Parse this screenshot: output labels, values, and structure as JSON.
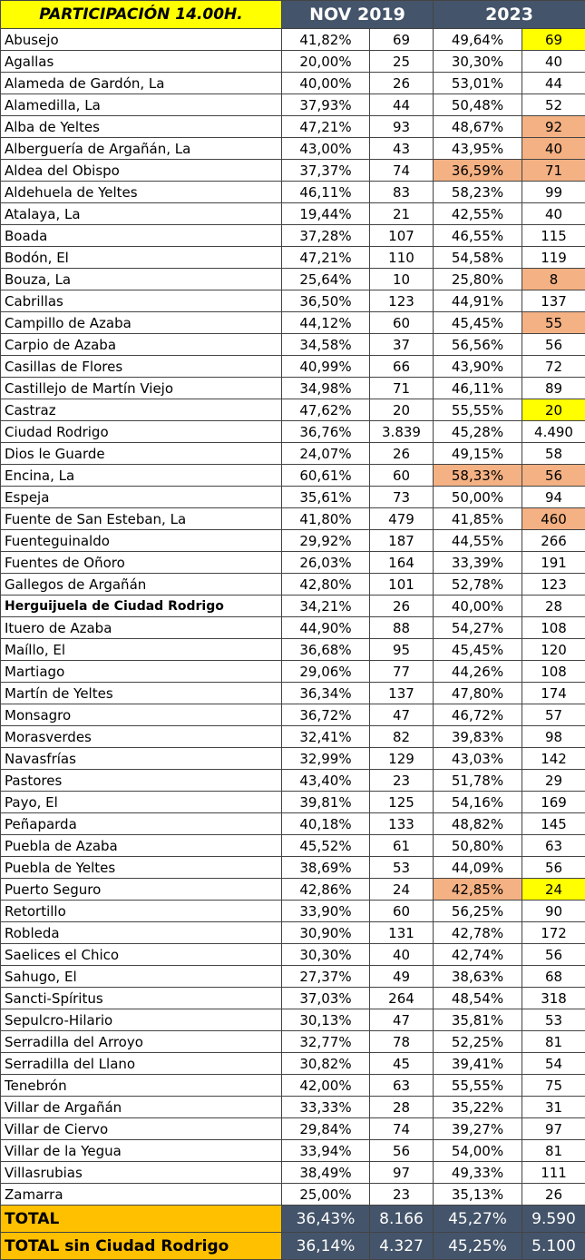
{
  "header": {
    "title": "PARTICIPACIÓN 14.00H.",
    "period1": "NOV 2019",
    "period2": "2023"
  },
  "colors": {
    "title_bg": "#ffff00",
    "header_bg": "#44546a",
    "highlight_yellow": "#ffff00",
    "highlight_orange": "#f4b183",
    "total_label_bg": "#ffc000"
  },
  "rows": [
    {
      "name": "Abusejo",
      "p2019": "41,82%",
      "n2019": "69",
      "p2023": "49,64%",
      "n2023": "69",
      "hl": [
        null,
        "yellow"
      ]
    },
    {
      "name": "Agallas",
      "p2019": "20,00%",
      "n2019": "25",
      "p2023": "30,30%",
      "n2023": "40",
      "hl": [
        null,
        null
      ]
    },
    {
      "name": "Alameda de Gardón, La",
      "p2019": "40,00%",
      "n2019": "26",
      "p2023": "53,01%",
      "n2023": "44",
      "hl": [
        null,
        null
      ]
    },
    {
      "name": "Alamedilla, La",
      "p2019": "37,93%",
      "n2019": "44",
      "p2023": "50,48%",
      "n2023": "52",
      "hl": [
        null,
        null
      ]
    },
    {
      "name": "Alba de Yeltes",
      "p2019": "47,21%",
      "n2019": "93",
      "p2023": "48,67%",
      "n2023": "92",
      "hl": [
        null,
        "orange"
      ]
    },
    {
      "name": "Alberguería de Argañán, La",
      "p2019": "43,00%",
      "n2019": "43",
      "p2023": "43,95%",
      "n2023": "40",
      "hl": [
        null,
        "orange"
      ]
    },
    {
      "name": "Aldea del Obispo",
      "p2019": "37,37%",
      "n2019": "74",
      "p2023": "36,59%",
      "n2023": "71",
      "hl": [
        "orange",
        "orange"
      ]
    },
    {
      "name": "Aldehuela de Yeltes",
      "p2019": "46,11%",
      "n2019": "83",
      "p2023": "58,23%",
      "n2023": "99",
      "hl": [
        null,
        null
      ]
    },
    {
      "name": "Atalaya, La",
      "p2019": "19,44%",
      "n2019": "21",
      "p2023": "42,55%",
      "n2023": "40",
      "hl": [
        null,
        null
      ]
    },
    {
      "name": "Boada",
      "p2019": "37,28%",
      "n2019": "107",
      "p2023": "46,55%",
      "n2023": "115",
      "hl": [
        null,
        null
      ]
    },
    {
      "name": "Bodón, El",
      "p2019": "47,21%",
      "n2019": "110",
      "p2023": "54,58%",
      "n2023": "119",
      "hl": [
        null,
        null
      ]
    },
    {
      "name": "Bouza, La",
      "p2019": "25,64%",
      "n2019": "10",
      "p2023": "25,80%",
      "n2023": "8",
      "hl": [
        null,
        "orange"
      ]
    },
    {
      "name": "Cabrillas",
      "p2019": "36,50%",
      "n2019": "123",
      "p2023": "44,91%",
      "n2023": "137",
      "hl": [
        null,
        null
      ]
    },
    {
      "name": "Campillo de Azaba",
      "p2019": "44,12%",
      "n2019": "60",
      "p2023": "45,45%",
      "n2023": "55",
      "hl": [
        null,
        "orange"
      ]
    },
    {
      "name": "Carpio de Azaba",
      "p2019": "34,58%",
      "n2019": "37",
      "p2023": "56,56%",
      "n2023": "56",
      "hl": [
        null,
        null
      ]
    },
    {
      "name": "Casillas de Flores",
      "p2019": "40,99%",
      "n2019": "66",
      "p2023": "43,90%",
      "n2023": "72",
      "hl": [
        null,
        null
      ]
    },
    {
      "name": "Castillejo de Martín Viejo",
      "p2019": "34,98%",
      "n2019": "71",
      "p2023": "46,11%",
      "n2023": "89",
      "hl": [
        null,
        null
      ]
    },
    {
      "name": "Castraz",
      "p2019": "47,62%",
      "n2019": "20",
      "p2023": "55,55%",
      "n2023": "20",
      "hl": [
        null,
        "yellow"
      ]
    },
    {
      "name": "Ciudad Rodrigo",
      "p2019": "36,76%",
      "n2019": "3.839",
      "p2023": "45,28%",
      "n2023": "4.490",
      "hl": [
        null,
        null
      ]
    },
    {
      "name": "Dios le Guarde",
      "p2019": "24,07%",
      "n2019": "26",
      "p2023": "49,15%",
      "n2023": "58",
      "hl": [
        null,
        null
      ]
    },
    {
      "name": "Encina, La",
      "p2019": "60,61%",
      "n2019": "60",
      "p2023": "58,33%",
      "n2023": "56",
      "hl": [
        "orange",
        "orange"
      ]
    },
    {
      "name": "Espeja",
      "p2019": "35,61%",
      "n2019": "73",
      "p2023": "50,00%",
      "n2023": "94",
      "hl": [
        null,
        null
      ]
    },
    {
      "name": "Fuente de San Esteban, La",
      "p2019": "41,80%",
      "n2019": "479",
      "p2023": "41,85%",
      "n2023": "460",
      "hl": [
        null,
        "orange"
      ]
    },
    {
      "name": "Fuenteguinaldo",
      "p2019": "29,92%",
      "n2019": "187",
      "p2023": "44,55%",
      "n2023": "266",
      "hl": [
        null,
        null
      ]
    },
    {
      "name": "Fuentes de Oñoro",
      "p2019": "26,03%",
      "n2019": "164",
      "p2023": "33,39%",
      "n2023": "191",
      "hl": [
        null,
        null
      ]
    },
    {
      "name": "Gallegos de Argañán",
      "p2019": "42,80%",
      "n2019": "101",
      "p2023": "52,78%",
      "n2023": "123",
      "hl": [
        null,
        null
      ]
    },
    {
      "name": "Herguijuela de Ciudad Rodrigo",
      "p2019": "34,21%",
      "n2019": "26",
      "p2023": "40,00%",
      "n2023": "28",
      "hl": [
        null,
        null
      ],
      "bold": true
    },
    {
      "name": "Ituero de Azaba",
      "p2019": "44,90%",
      "n2019": "88",
      "p2023": "54,27%",
      "n2023": "108",
      "hl": [
        null,
        null
      ]
    },
    {
      "name": "Maíllo, El",
      "p2019": "36,68%",
      "n2019": "95",
      "p2023": "45,45%",
      "n2023": "120",
      "hl": [
        null,
        null
      ]
    },
    {
      "name": "Martiago",
      "p2019": "29,06%",
      "n2019": "77",
      "p2023": "44,26%",
      "n2023": "108",
      "hl": [
        null,
        null
      ]
    },
    {
      "name": "Martín de Yeltes",
      "p2019": "36,34%",
      "n2019": "137",
      "p2023": "47,80%",
      "n2023": "174",
      "hl": [
        null,
        null
      ]
    },
    {
      "name": "Monsagro",
      "p2019": "36,72%",
      "n2019": "47",
      "p2023": "46,72%",
      "n2023": "57",
      "hl": [
        null,
        null
      ]
    },
    {
      "name": "Morasverdes",
      "p2019": "32,41%",
      "n2019": "82",
      "p2023": "39,83%",
      "n2023": "98",
      "hl": [
        null,
        null
      ]
    },
    {
      "name": "Navasfrías",
      "p2019": "32,99%",
      "n2019": "129",
      "p2023": "43,03%",
      "n2023": "142",
      "hl": [
        null,
        null
      ]
    },
    {
      "name": "Pastores",
      "p2019": "43,40%",
      "n2019": "23",
      "p2023": "51,78%",
      "n2023": "29",
      "hl": [
        null,
        null
      ]
    },
    {
      "name": "Payo, El",
      "p2019": "39,81%",
      "n2019": "125",
      "p2023": "54,16%",
      "n2023": "169",
      "hl": [
        null,
        null
      ]
    },
    {
      "name": "Peñaparda",
      "p2019": "40,18%",
      "n2019": "133",
      "p2023": "48,82%",
      "n2023": "145",
      "hl": [
        null,
        null
      ]
    },
    {
      "name": "Puebla de Azaba",
      "p2019": "45,52%",
      "n2019": "61",
      "p2023": "50,80%",
      "n2023": "63",
      "hl": [
        null,
        null
      ]
    },
    {
      "name": "Puebla de Yeltes",
      "p2019": "38,69%",
      "n2019": "53",
      "p2023": "44,09%",
      "n2023": "56",
      "hl": [
        null,
        null
      ]
    },
    {
      "name": "Puerto Seguro",
      "p2019": "42,86%",
      "n2019": "24",
      "p2023": "42,85%",
      "n2023": "24",
      "hl": [
        "orange",
        "yellow"
      ]
    },
    {
      "name": "Retortillo",
      "p2019": "33,90%",
      "n2019": "60",
      "p2023": "56,25%",
      "n2023": "90",
      "hl": [
        null,
        null
      ]
    },
    {
      "name": "Robleda",
      "p2019": "30,90%",
      "n2019": "131",
      "p2023": "42,78%",
      "n2023": "172",
      "hl": [
        null,
        null
      ]
    },
    {
      "name": "Saelices el Chico",
      "p2019": "30,30%",
      "n2019": "40",
      "p2023": "42,74%",
      "n2023": "56",
      "hl": [
        null,
        null
      ]
    },
    {
      "name": "Sahugo, El",
      "p2019": "27,37%",
      "n2019": "49",
      "p2023": "38,63%",
      "n2023": "68",
      "hl": [
        null,
        null
      ]
    },
    {
      "name": "Sancti-Spíritus",
      "p2019": "37,03%",
      "n2019": "264",
      "p2023": "48,54%",
      "n2023": "318",
      "hl": [
        null,
        null
      ]
    },
    {
      "name": "Sepulcro-Hilario",
      "p2019": "30,13%",
      "n2019": "47",
      "p2023": "35,81%",
      "n2023": "53",
      "hl": [
        null,
        null
      ]
    },
    {
      "name": "Serradilla del Arroyo",
      "p2019": "32,77%",
      "n2019": "78",
      "p2023": "52,25%",
      "n2023": "81",
      "hl": [
        null,
        null
      ]
    },
    {
      "name": "Serradilla del Llano",
      "p2019": "30,82%",
      "n2019": "45",
      "p2023": "39,41%",
      "n2023": "54",
      "hl": [
        null,
        null
      ]
    },
    {
      "name": "Tenebrón",
      "p2019": "42,00%",
      "n2019": "63",
      "p2023": "55,55%",
      "n2023": "75",
      "hl": [
        null,
        null
      ]
    },
    {
      "name": "Villar de Argañán",
      "p2019": "33,33%",
      "n2019": "28",
      "p2023": "35,22%",
      "n2023": "31",
      "hl": [
        null,
        null
      ]
    },
    {
      "name": "Villar de Ciervo",
      "p2019": "29,84%",
      "n2019": "74",
      "p2023": "39,27%",
      "n2023": "97",
      "hl": [
        null,
        null
      ]
    },
    {
      "name": "Villar de la Yegua",
      "p2019": "33,94%",
      "n2019": "56",
      "p2023": "54,00%",
      "n2023": "81",
      "hl": [
        null,
        null
      ]
    },
    {
      "name": "Villasrubias",
      "p2019": "38,49%",
      "n2019": "97",
      "p2023": "49,33%",
      "n2023": "111",
      "hl": [
        null,
        null
      ]
    },
    {
      "name": "Zamarra",
      "p2019": "25,00%",
      "n2019": "23",
      "p2023": "35,13%",
      "n2023": "26",
      "hl": [
        null,
        null
      ]
    }
  ],
  "totals": [
    {
      "name": "TOTAL",
      "p2019": "36,43%",
      "n2019": "8.166",
      "p2023": "45,27%",
      "n2023": "9.590"
    },
    {
      "name": "TOTAL sin Ciudad Rodrigo",
      "p2019": "36,14%",
      "n2019": "4.327",
      "p2023": "45,25%",
      "n2023": "5.100"
    }
  ]
}
